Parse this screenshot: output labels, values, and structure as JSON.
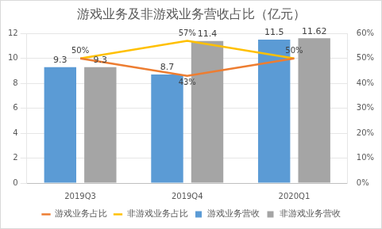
{
  "chart_data": {
    "type": "bar",
    "title": "游戏业务及非游戏业务营收占比（亿元）",
    "categories": [
      "2019Q3",
      "2019Q4",
      "2020Q1"
    ],
    "series": [
      {
        "name": "游戏业务营收",
        "type": "bar",
        "color": "#5B9BD5",
        "values": [
          9.3,
          8.7,
          11.5
        ]
      },
      {
        "name": "非游戏业务营收",
        "type": "bar",
        "color": "#A5A5A5",
        "values": [
          9.3,
          11.4,
          11.62
        ]
      },
      {
        "name": "游戏业务占比",
        "type": "line",
        "color": "#ED7D31",
        "axis": "y2",
        "values": [
          50,
          43,
          50
        ],
        "value_labels": [
          null,
          "43%",
          null
        ]
      },
      {
        "name": "非游戏业务占比",
        "type": "line",
        "color": "#FFC000",
        "axis": "y2",
        "values": [
          50,
          57,
          50
        ],
        "value_labels": [
          "50%",
          "57%",
          "50%"
        ]
      }
    ],
    "ylim": [
      0,
      12
    ],
    "yticks": [
      0,
      2,
      4,
      6,
      8,
      10,
      12
    ],
    "y2lim": [
      0,
      60
    ],
    "y2ticks": [
      {
        "value": 0,
        "label": "0%"
      },
      {
        "value": 10,
        "label": "10%"
      },
      {
        "value": 20,
        "label": "20%"
      },
      {
        "value": 30,
        "label": "30%"
      },
      {
        "value": 40,
        "label": "40%"
      },
      {
        "value": 50,
        "label": "50%"
      },
      {
        "value": 60,
        "label": "60%"
      }
    ],
    "grid": true,
    "legend": "bottom",
    "data_labels": true
  }
}
